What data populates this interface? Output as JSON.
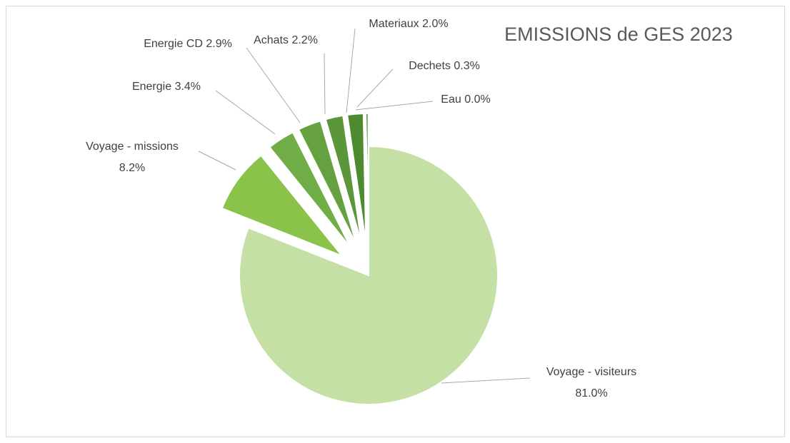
{
  "chart_data": {
    "type": "pie",
    "title": "EMISSIONS de GES 2023",
    "categories": [
      "Voyage - visiteurs",
      "Voyage - missions",
      "Energie",
      "Energie CD",
      "Achats",
      "Materiaux",
      "Dechets",
      "Eau"
    ],
    "values": [
      81.0,
      8.2,
      3.4,
      2.9,
      2.2,
      2.0,
      0.3,
      0.0
    ],
    "value_labels": [
      "81.0%",
      "8.2%",
      "3.4%",
      "2.9%",
      "2.2%",
      "2.0%",
      "0.3%",
      "0.0%"
    ],
    "colors": [
      "#c5e0a5",
      "#8bc34a",
      "#70ad47",
      "#66a141",
      "#5b963a",
      "#4e8a30",
      "#3e7b26",
      "#2f6b1d"
    ]
  }
}
